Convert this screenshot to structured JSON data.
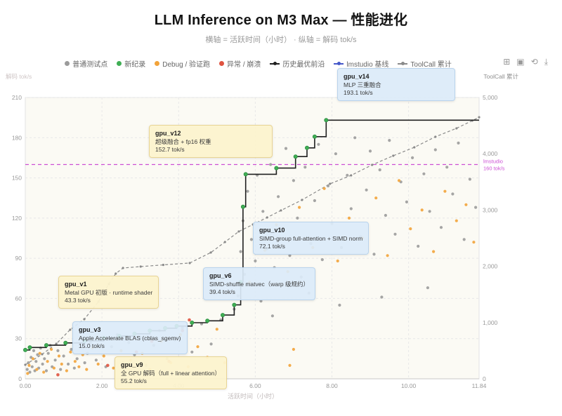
{
  "page": {
    "title": "LLM Inference on M3 Max — 性能进化",
    "subtitle": "横轴 = 活跃时间（小时） · 纵轴 = 解码 tok/s"
  },
  "toolbar": {
    "icons": [
      {
        "name": "zoom-box-icon",
        "glyph": "⊞"
      },
      {
        "name": "restore-icon",
        "glyph": "▣"
      },
      {
        "name": "refresh-icon",
        "glyph": "⟲"
      },
      {
        "name": "download-icon",
        "glyph": "⤓"
      }
    ]
  },
  "colors": {
    "normal": "#9b9b9b",
    "record": "#3fae54",
    "record_edge": "#2e8f42",
    "debug": "#f2a33a",
    "crash": "#df5340",
    "frontier": "#1f1f1f",
    "lmstudio_legend": "#4558c9",
    "toolcall": "#8a8a8a",
    "baseline": "#cc4fd4",
    "grid": "#e8e8e8",
    "plot_bg": "#fbfaf4",
    "plot_border": "#e3e3e3",
    "tick": "#999999"
  },
  "legend": {
    "items": [
      {
        "label": "普通测试点",
        "type": "dot",
        "color": "#9b9b9b"
      },
      {
        "label": "新纪录",
        "type": "dot",
        "color": "#3fae54"
      },
      {
        "label": "Debug / 验证跑",
        "type": "dot",
        "color": "#f2a33a"
      },
      {
        "label": "异常 / 崩溃",
        "type": "dot",
        "color": "#df5340"
      },
      {
        "label": "历史最优前沿",
        "type": "line",
        "color": "#1f1f1f"
      },
      {
        "label": "lmstudio 基线",
        "type": "line",
        "color": "#4558c9"
      },
      {
        "label": "ToolCall 累计",
        "type": "line",
        "color": "#8a8a8a"
      }
    ]
  },
  "chart_data": {
    "type": "scatter",
    "title": "LLM Inference on M3 Max — 性能进化",
    "xlabel": "活跃时间（小时）",
    "ylabel_left": "解码 tok/s",
    "ylabel_right": "ToolCall 累计",
    "xlim": [
      0,
      11.84
    ],
    "ylim_left": [
      0,
      210
    ],
    "ylim_right": [
      0,
      5000
    ],
    "grid": true,
    "legend_position": "top",
    "xticks": {
      "values": [
        0,
        2,
        4,
        6,
        8,
        10,
        11.84
      ],
      "labels": [
        "0.00",
        "2.00",
        "4.00",
        "6.00",
        "8.00",
        "10.00",
        "11.84"
      ]
    },
    "yticks_left": {
      "values": [
        0,
        30,
        60,
        90,
        120,
        150,
        180,
        210
      ],
      "labels": [
        "0",
        "30",
        "60",
        "90",
        "120",
        "150",
        "180",
        "210"
      ]
    },
    "yticks_right": {
      "values": [
        0,
        1000,
        2000,
        3000,
        4000,
        5000
      ],
      "labels": [
        "0",
        "1,000",
        "2,000",
        "3,000",
        "4,000",
        "5,000"
      ]
    },
    "baseline": {
      "name": "lmstudio 基线",
      "value": 160,
      "label_lines": [
        "lmstudio",
        "160 tok/s"
      ],
      "color": "#cc4fd4"
    },
    "series": [
      {
        "name": "普通测试点",
        "type": "scatter",
        "color": "#9b9b9b",
        "points": [
          [
            0.05,
            7
          ],
          [
            0.08,
            12
          ],
          [
            0.12,
            5
          ],
          [
            0.15,
            16
          ],
          [
            0.18,
            9
          ],
          [
            0.22,
            21
          ],
          [
            0.25,
            6
          ],
          [
            0.28,
            13
          ],
          [
            0.32,
            18
          ],
          [
            0.35,
            8
          ],
          [
            0.4,
            23
          ],
          [
            0.45,
            11
          ],
          [
            0.5,
            15
          ],
          [
            0.55,
            6
          ],
          [
            0.6,
            19
          ],
          [
            0.65,
            25
          ],
          [
            0.7,
            9
          ],
          [
            0.78,
            14
          ],
          [
            0.85,
            21
          ],
          [
            0.92,
            7
          ],
          [
            1.0,
            17
          ],
          [
            1.05,
            26
          ],
          [
            1.12,
            11
          ],
          [
            1.2,
            22
          ],
          [
            1.28,
            8
          ],
          [
            1.35,
            15
          ],
          [
            1.45,
            24
          ],
          [
            1.55,
            12
          ],
          [
            1.62,
            19
          ],
          [
            1.7,
            27
          ],
          [
            1.85,
            14
          ],
          [
            1.95,
            29
          ],
          [
            2.1,
            9
          ],
          [
            2.25,
            24
          ],
          [
            2.4,
            33
          ],
          [
            2.55,
            12
          ],
          [
            2.7,
            27
          ],
          [
            2.85,
            18
          ],
          [
            3.0,
            31
          ],
          [
            3.15,
            10
          ],
          [
            3.35,
            25
          ],
          [
            3.5,
            36
          ],
          [
            3.7,
            15
          ],
          [
            3.9,
            29
          ],
          [
            4.1,
            38
          ],
          [
            4.35,
            20
          ],
          [
            4.6,
            41
          ],
          [
            4.85,
            26
          ],
          [
            5.1,
            44
          ],
          [
            5.45,
            52
          ],
          [
            5.55,
            62
          ],
          [
            5.62,
            95
          ],
          [
            5.68,
            118
          ],
          [
            5.72,
            78
          ],
          [
            5.8,
            140
          ],
          [
            5.9,
            104
          ],
          [
            6.0,
            88
          ],
          [
            6.05,
            152
          ],
          [
            6.1,
            70
          ],
          [
            6.2,
            125
          ],
          [
            6.3,
            97
          ],
          [
            6.4,
            160
          ],
          [
            6.5,
            83
          ],
          [
            6.6,
            136
          ],
          [
            6.7,
            110
          ],
          [
            6.8,
            172
          ],
          [
            6.9,
            92
          ],
          [
            7.0,
            148
          ],
          [
            7.1,
            120
          ],
          [
            7.2,
            76
          ],
          [
            7.3,
            158
          ],
          [
            7.45,
            101
          ],
          [
            7.55,
            133
          ],
          [
            7.65,
            175
          ],
          [
            7.75,
            89
          ],
          [
            7.9,
            144
          ],
          [
            8.0,
            116
          ],
          [
            8.1,
            168
          ],
          [
            8.25,
            98
          ],
          [
            8.4,
            152
          ],
          [
            8.5,
            127
          ],
          [
            8.6,
            180
          ],
          [
            8.75,
            106
          ],
          [
            8.9,
            141
          ],
          [
            9.0,
            170
          ],
          [
            9.1,
            93
          ],
          [
            9.25,
            156
          ],
          [
            9.4,
            122
          ],
          [
            9.5,
            178
          ],
          [
            9.65,
            108
          ],
          [
            9.8,
            147
          ],
          [
            9.95,
            132
          ],
          [
            10.1,
            165
          ],
          [
            10.25,
            99
          ],
          [
            10.4,
            153
          ],
          [
            10.55,
            125
          ],
          [
            10.7,
            171
          ],
          [
            10.85,
            113
          ],
          [
            11.0,
            158
          ],
          [
            11.15,
            138
          ],
          [
            11.3,
            176
          ],
          [
            11.45,
            104
          ],
          [
            11.6,
            149
          ],
          [
            11.75,
            128
          ],
          [
            6.15,
            58
          ],
          [
            6.45,
            47
          ],
          [
            7.4,
            64
          ],
          [
            8.2,
            55
          ],
          [
            9.3,
            61
          ],
          [
            10.5,
            68
          ]
        ]
      },
      {
        "name": "Debug / 验证跑",
        "type": "scatter",
        "color": "#f2a33a",
        "points": [
          [
            0.06,
            4
          ],
          [
            0.1,
            10
          ],
          [
            0.2,
            15
          ],
          [
            0.3,
            7
          ],
          [
            0.38,
            19
          ],
          [
            0.48,
            5
          ],
          [
            0.58,
            13
          ],
          [
            0.68,
            22
          ],
          [
            0.75,
            8
          ],
          [
            0.88,
            17
          ],
          [
            0.95,
            11
          ],
          [
            1.08,
            6
          ],
          [
            1.18,
            20
          ],
          [
            1.3,
            13
          ],
          [
            1.4,
            9
          ],
          [
            1.5,
            18
          ],
          [
            1.6,
            7
          ],
          [
            1.75,
            23
          ],
          [
            1.9,
            11
          ],
          [
            2.05,
            17
          ],
          [
            2.3,
            8
          ],
          [
            2.5,
            21
          ],
          [
            2.75,
            14
          ],
          [
            3.05,
            19
          ],
          [
            3.25,
            7
          ],
          [
            3.55,
            28
          ],
          [
            3.8,
            12
          ],
          [
            4.05,
            33
          ],
          [
            4.25,
            9
          ],
          [
            4.5,
            24
          ],
          [
            4.75,
            16
          ],
          [
            5.0,
            37
          ],
          [
            5.2,
            12
          ],
          [
            5.85,
            72
          ],
          [
            6.25,
            96
          ],
          [
            6.55,
            115
          ],
          [
            6.85,
            80
          ],
          [
            7.15,
            128
          ],
          [
            7.5,
            98
          ],
          [
            7.8,
            142
          ],
          [
            8.15,
            88
          ],
          [
            8.45,
            120
          ],
          [
            8.8,
            105
          ],
          [
            9.15,
            135
          ],
          [
            9.45,
            92
          ],
          [
            9.75,
            148
          ],
          [
            10.05,
            112
          ],
          [
            10.35,
            126
          ],
          [
            10.65,
            95
          ],
          [
            10.95,
            140
          ],
          [
            11.25,
            118
          ],
          [
            11.5,
            130
          ],
          [
            11.7,
            102
          ],
          [
            6.9,
            10
          ],
          [
            7.0,
            22
          ]
        ]
      },
      {
        "name": "异常 / 崩溃",
        "type": "scatter",
        "color": "#df5340",
        "points": [
          [
            0.85,
            3
          ],
          [
            2.15,
            10
          ],
          [
            2.9,
            20
          ],
          [
            3.3,
            28
          ],
          [
            3.75,
            13
          ],
          [
            4.1,
            36
          ],
          [
            4.28,
            44
          ]
        ]
      },
      {
        "name": "新纪录",
        "type": "scatter",
        "color": "#3fae54",
        "points": [
          [
            0.0,
            21.5
          ],
          [
            0.12,
            23.4
          ],
          [
            0.55,
            25.1
          ],
          [
            1.05,
            26.8
          ],
          [
            1.55,
            28.4
          ],
          [
            2.05,
            30.5
          ],
          [
            2.45,
            32.0
          ],
          [
            2.85,
            33.6
          ],
          [
            3.25,
            35.9
          ],
          [
            3.65,
            37.8
          ],
          [
            3.95,
            39.4
          ],
          [
            4.35,
            41.9
          ],
          [
            4.75,
            43.3
          ],
          [
            5.15,
            47.6
          ],
          [
            5.45,
            55.2
          ],
          [
            5.62,
            72.1
          ],
          [
            5.68,
            128.4
          ],
          [
            5.75,
            152.7
          ],
          [
            6.55,
            157.3
          ],
          [
            7.05,
            165.9
          ],
          [
            7.35,
            172.4
          ],
          [
            7.55,
            180.8
          ],
          [
            7.85,
            193.1
          ]
        ]
      },
      {
        "name": "历史最优前沿",
        "type": "step-line",
        "color": "#1f1f1f",
        "points": [
          [
            0.0,
            21.5
          ],
          [
            0.12,
            23.4
          ],
          [
            0.55,
            25.1
          ],
          [
            1.05,
            26.8
          ],
          [
            1.55,
            28.4
          ],
          [
            2.05,
            30.5
          ],
          [
            2.45,
            32.0
          ],
          [
            2.85,
            33.6
          ],
          [
            3.25,
            35.9
          ],
          [
            3.65,
            37.8
          ],
          [
            3.95,
            39.4
          ],
          [
            4.35,
            41.9
          ],
          [
            4.75,
            43.3
          ],
          [
            5.15,
            47.6
          ],
          [
            5.45,
            55.2
          ],
          [
            5.62,
            72.1
          ],
          [
            5.68,
            128.4
          ],
          [
            5.75,
            152.7
          ],
          [
            6.55,
            157.3
          ],
          [
            7.05,
            165.9
          ],
          [
            7.35,
            172.4
          ],
          [
            7.55,
            180.8
          ],
          [
            7.85,
            193.1
          ]
        ]
      },
      {
        "name": "ToolCall 累计",
        "type": "line",
        "axis": "right",
        "dashed": true,
        "color": "#8a8a8a",
        "points": [
          [
            0.0,
            250
          ],
          [
            0.44,
            437
          ],
          [
            0.81,
            623
          ],
          [
            1.17,
            873
          ],
          [
            1.54,
            1060
          ],
          [
            1.91,
            1372
          ],
          [
            2.18,
            1684
          ],
          [
            2.36,
            1870
          ],
          [
            2.55,
            1970
          ],
          [
            3.01,
            1995
          ],
          [
            3.6,
            2025
          ],
          [
            4.29,
            2058
          ],
          [
            4.84,
            2245
          ],
          [
            5.21,
            2432
          ],
          [
            5.57,
            2619
          ],
          [
            5.94,
            2743
          ],
          [
            6.31,
            2868
          ],
          [
            6.67,
            2993
          ],
          [
            7.22,
            3180
          ],
          [
            7.95,
            3466
          ],
          [
            8.5,
            3616
          ],
          [
            9.05,
            3803
          ],
          [
            9.6,
            3965
          ],
          [
            10.15,
            4115
          ],
          [
            10.7,
            4302
          ],
          [
            11.25,
            4452
          ],
          [
            11.66,
            4589
          ],
          [
            11.84,
            4650
          ]
        ]
      }
    ],
    "annotations": [
      {
        "id": "gpu_v1",
        "title": "gpu_v1",
        "desc": "Metal GPU 初版 · runtime shader",
        "value": "43.3 tok/s",
        "style": "yellow"
      },
      {
        "id": "gpu_v3",
        "title": "gpu_v3",
        "desc": "Apple Accelerate BLAS (cblas_sgemv)",
        "value": "15.0 tok/s",
        "style": "blue"
      },
      {
        "id": "gpu_v9",
        "title": "gpu_v9",
        "desc": "全 GPU 解码（full + linear attention）",
        "value": "55.2 tok/s",
        "style": "yellow"
      },
      {
        "id": "gpu_v6",
        "title": "gpu_v6",
        "desc": "SIMD-shuffle matvec（warp 级规约）",
        "value": "39.4 tok/s",
        "style": "blue"
      },
      {
        "id": "gpu_v10",
        "title": "gpu_v10",
        "desc": "SIMD-group full-attention + SIMD norm",
        "value": "72.1 tok/s",
        "style": "blue"
      },
      {
        "id": "gpu_v12",
        "title": "gpu_v12",
        "desc": "超级融合 + fp16 权重",
        "value": "152.7 tok/s",
        "style": "yellow"
      },
      {
        "id": "gpu_v14",
        "title": "gpu_v14",
        "desc": "MLP 三重融合",
        "value": "193.1 tok/s",
        "style": "blue"
      }
    ]
  }
}
